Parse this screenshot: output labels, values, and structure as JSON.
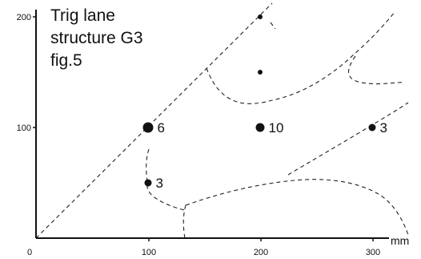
{
  "title_lines": [
    "Trig lane",
    "structure G3",
    "fig.5"
  ],
  "axis": {
    "unit": "mm",
    "x_ticks": [
      "0",
      "100",
      "200",
      "300"
    ],
    "y_ticks": [
      "100",
      "200"
    ]
  },
  "chart_data": {
    "type": "scatter",
    "x_unit": "mm",
    "y_unit": "mm",
    "xlim": [
      0,
      330
    ],
    "ylim": [
      0,
      205
    ],
    "points": [
      {
        "x": 100,
        "y": 100,
        "label": "6",
        "size": 6
      },
      {
        "x": 200,
        "y": 100,
        "label": "10",
        "size": 10
      },
      {
        "x": 300,
        "y": 100,
        "label": "3",
        "size": 3
      },
      {
        "x": 100,
        "y": 50,
        "label": "3",
        "size": 3
      },
      {
        "x": 200,
        "y": 150,
        "label": "",
        "size": 1
      },
      {
        "x": 200,
        "y": 200,
        "label": "",
        "size": 1
      }
    ]
  }
}
